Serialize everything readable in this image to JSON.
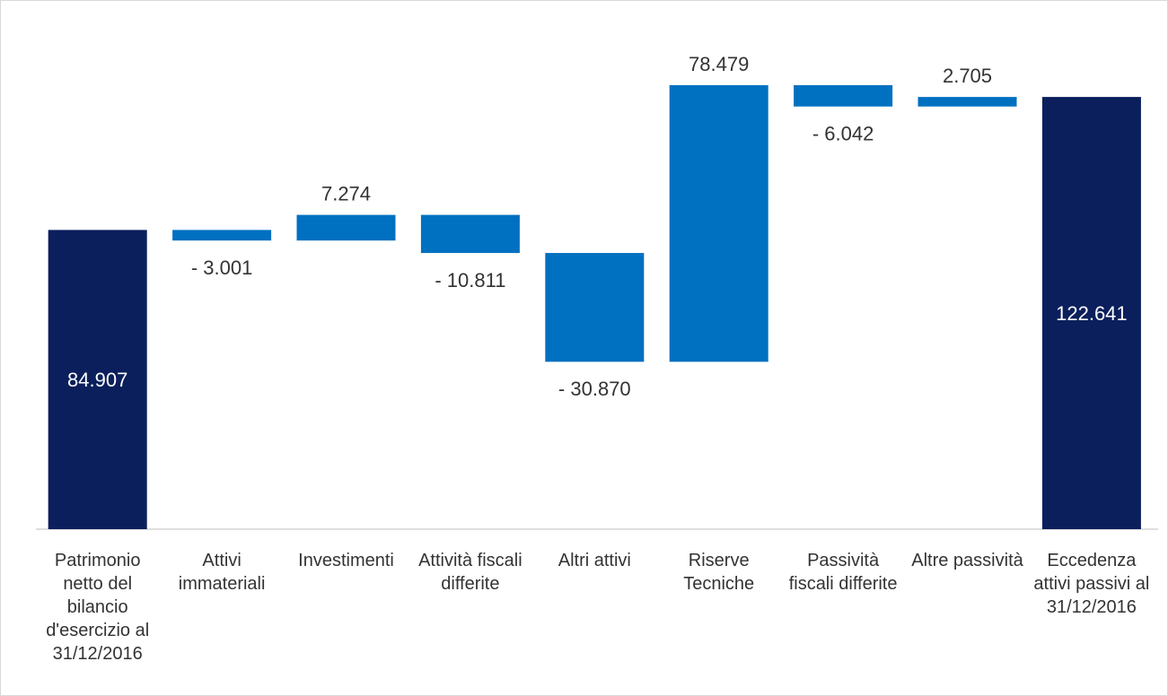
{
  "chart_data": {
    "type": "waterfall",
    "categories": [
      "Patrimonio netto del bilancio d'esercizio al 31/12/2016",
      "Attivi immateriali",
      "Investimenti",
      "Attività fiscali differite",
      "Altri attivi",
      "Riserve Tecniche",
      "Passività fiscali differite",
      "Altre passività",
      "Eccedenza attivi passivi al 31/12/2016"
    ],
    "values": [
      84907,
      -3001,
      7274,
      -10811,
      -30870,
      78479,
      -6042,
      2705,
      122641
    ],
    "value_labels": [
      "84.907",
      "- 3.001",
      "7.274",
      "- 10.811",
      "- 30.870",
      "78.479",
      "- 6.042",
      "2.705",
      "122.641"
    ],
    "total_color": "#0b1f5c",
    "change_color": "#0070c0"
  }
}
